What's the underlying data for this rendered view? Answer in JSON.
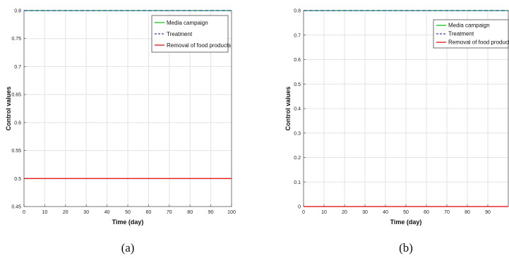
{
  "chart_data": [
    {
      "type": "line",
      "caption": "(a)",
      "xlabel": "Time (day)",
      "ylabel": "Control values",
      "xlim": [
        0,
        100
      ],
      "ylim": [
        0.45,
        0.8
      ],
      "xticks": [
        0,
        10,
        20,
        30,
        40,
        50,
        60,
        70,
        80,
        90,
        100
      ],
      "yticks": [
        0.45,
        0.5,
        0.55,
        0.6,
        0.65,
        0.7,
        0.75,
        0.8
      ],
      "ytick_labels": [
        "0.45",
        "0.5",
        "0.55",
        "0.6",
        "0.65",
        "0.7",
        "0.75",
        "0.8"
      ],
      "grid": true,
      "legend_position": "top-right",
      "series": [
        {
          "name": "Media campaign",
          "color": "#00c000",
          "dash": "solid",
          "x": [
            0,
            100
          ],
          "y": [
            0.8,
            0.8
          ]
        },
        {
          "name": "Treatment",
          "color": "#3a3acc",
          "dash": "dashed",
          "x": [
            0,
            100
          ],
          "y": [
            0.8,
            0.8
          ]
        },
        {
          "name": "Removal of food products",
          "color": "#e00000",
          "dash": "solid",
          "x": [
            0,
            100
          ],
          "y": [
            0.5,
            0.5
          ]
        }
      ]
    },
    {
      "type": "line",
      "caption": "(b)",
      "xlabel": "Time (day)",
      "ylabel": "Control values",
      "xlim": [
        0,
        100
      ],
      "ylim": [
        0,
        0.8
      ],
      "xticks": [
        0,
        10,
        20,
        30,
        40,
        50,
        60,
        70,
        80,
        90
      ],
      "yticks": [
        0,
        0.1,
        0.2,
        0.3,
        0.4,
        0.5,
        0.6,
        0.7,
        0.8
      ],
      "ytick_labels": [
        "0",
        "0.1",
        "0.2",
        "0.3",
        "0.4",
        "0.5",
        "0.6",
        "0.7",
        "0.8"
      ],
      "grid": true,
      "legend_position": "top-right",
      "series": [
        {
          "name": "Media campaign",
          "color": "#00c000",
          "dash": "solid",
          "x": [
            0,
            100
          ],
          "y": [
            0.8,
            0.8
          ]
        },
        {
          "name": "Treatment",
          "color": "#3a3acc",
          "dash": "dashed",
          "x": [
            0,
            100
          ],
          "y": [
            0.8,
            0.8
          ]
        },
        {
          "name": "Removal of food products",
          "color": "#e00000",
          "dash": "solid",
          "x": [
            0,
            100
          ],
          "y": [
            0,
            0
          ]
        }
      ]
    }
  ]
}
